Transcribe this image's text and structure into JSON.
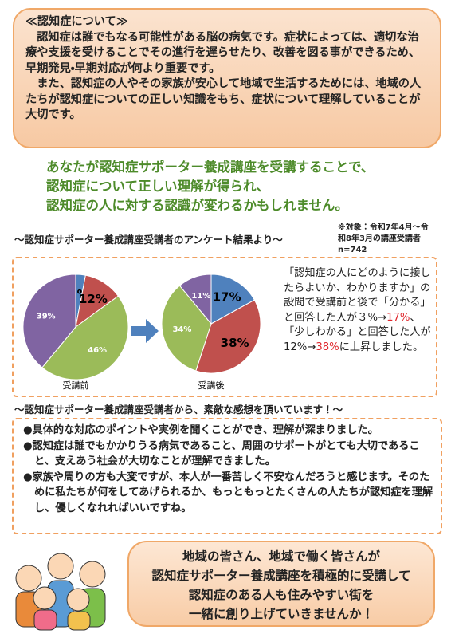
{
  "intro": {
    "heading": "≪認知症について≫",
    "paragraphs": [
      "　認知症は誰でもなる可能性がある脳の病気です。症状によっては、適切な治療や支援を受けることでその進行を遅らせたり、改善を図る事ができるため、早期発見・早期対応が何より重要です。",
      "　また、認知症の人やその家族が安心して地域で生活するためには、地域の人たちが認知症についての正しい知識をもち、症状について理解していることが大切です。"
    ]
  },
  "message": {
    "lines": [
      "あなたが認知症サポーター養成講座を受講することで、",
      "認知症について正しい理解が得られ、",
      "認知症の人に対する認識が変わるかもしれません。"
    ]
  },
  "survey": {
    "title": "～認知症サポーター養成講座受講者のアンケート結果より～",
    "note": "※対象：令和7年4月～令和8年3月の講座受講者 n=742",
    "description": [
      "「認知症の人にどのように接したらよいか、わかりますか」の設問で受講前と後で「分かる」と回答した人が３%→",
      "17%",
      "、「少しわかる」と回答した人が12%→",
      "38%",
      "に上昇しました。"
    ]
  },
  "chart_data": [
    {
      "type": "pie",
      "title": "受講前",
      "values": [
        3,
        12,
        46,
        39
      ],
      "value_labels": [
        "3%",
        "12%",
        "46%",
        "39%"
      ],
      "colors": [
        "#4f81bd",
        "#c0504d",
        "#9bbb59",
        "#8064a2"
      ]
    },
    {
      "type": "pie",
      "title": "受講後",
      "values": [
        17,
        38,
        34,
        11
      ],
      "value_labels": [
        "17%",
        "38%",
        "34%",
        "11%"
      ],
      "colors": [
        "#4f81bd",
        "#c0504d",
        "#9bbb59",
        "#8064a2"
      ]
    }
  ],
  "feedback": {
    "title": "～認知症サポーター養成講座受講者から、素敵な感想を頂いています！～",
    "items": [
      "具体的な対応のポイントや実例を聞くことができ、理解が深まりました。",
      "認知症は誰でもかかりうる病気であること、周囲のサポートがとても大切であること、支えあう社会が大切なことが理解できました。",
      "家族や周りの方も大変ですが、本人が一番苦しく不安なんだろうと感じます。そのために私たちが何をしてあげられるか、もっともっとたくさんの人たちが認知症を理解し、優しくなれればいいですね。"
    ]
  },
  "closing": {
    "lines": [
      "地域の皆さん、地域で働く皆さんが",
      "認知症サポーター養成講座を積極的に受講して",
      "認知症のある人も住みやすい街を",
      "一緒に創り上げていきませんか！"
    ]
  }
}
